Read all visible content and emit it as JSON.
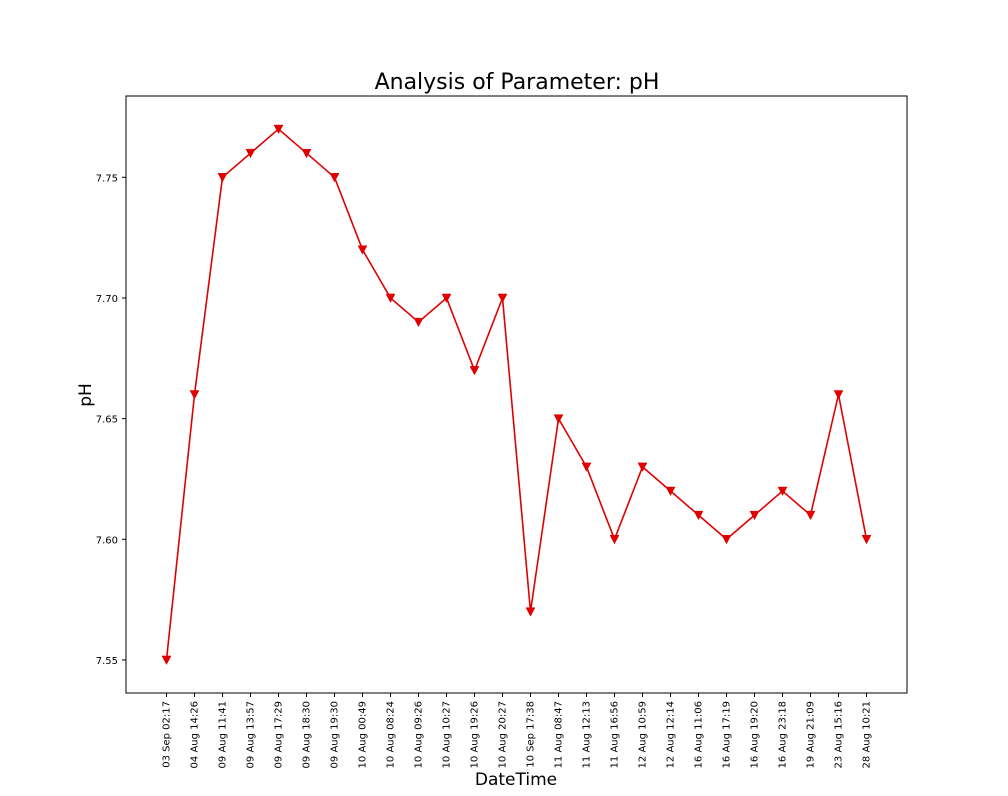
{
  "chart_data": {
    "type": "line",
    "title": "Analysis of Parameter: pH",
    "xlabel": "DateTime",
    "ylabel": "pH",
    "categories": [
      "03 Sep 02:17",
      "04 Aug 14:26",
      "09 Aug 11:41",
      "09 Aug 13:57",
      "09 Aug 17:29",
      "09 Aug 18:30",
      "09 Aug 19:30",
      "10 Aug 00:49",
      "10 Aug 08:24",
      "10 Aug 09:26",
      "10 Aug 10:27",
      "10 Aug 19:26",
      "10 Aug 20:27",
      "10 Sep 17:38",
      "11 Aug 08:47",
      "11 Aug 12:13",
      "11 Aug 16:56",
      "12 Aug 10:59",
      "12 Aug 12:14",
      "16 Aug 11:06",
      "16 Aug 17:19",
      "16 Aug 19:20",
      "16 Aug 23:18",
      "19 Aug 21:09",
      "23 Aug 15:16",
      "28 Aug 10:21"
    ],
    "series": [
      {
        "values": [
          7.55,
          7.66,
          7.75,
          7.76,
          7.77,
          7.76,
          7.75,
          7.72,
          7.7,
          7.69,
          7.7,
          7.67,
          7.7,
          7.57,
          7.65,
          7.63,
          7.6,
          7.63,
          7.62,
          7.61,
          7.6,
          7.61,
          7.62,
          7.61,
          7.66,
          7.6
        ],
        "color": "#e00000",
        "marker": "triangle-down"
      }
    ],
    "yticks": [
      "7.55",
      "7.60",
      "7.65",
      "7.70",
      "7.75"
    ],
    "ylim": [
      7.5363,
      7.7837
    ],
    "grid": false,
    "legend": "none"
  }
}
